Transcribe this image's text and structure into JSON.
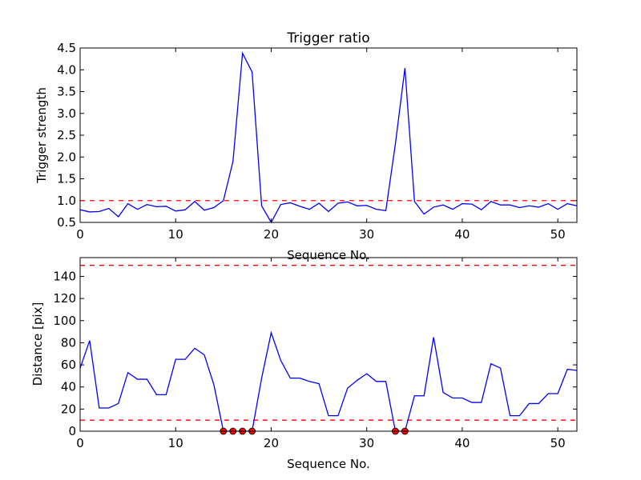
{
  "chart_data": [
    {
      "type": "line",
      "title": "Trigger ratio",
      "xlabel": "Sequence No.",
      "ylabel": "Trigger strength",
      "xlim": [
        0,
        52
      ],
      "ylim": [
        0.5,
        4.5
      ],
      "xticks": [
        "0",
        "10",
        "20",
        "30",
        "40",
        "50"
      ],
      "yticks": [
        "0.5",
        "1.0",
        "1.5",
        "2.0",
        "2.5",
        "3.0",
        "3.5",
        "4.0",
        "4.5"
      ],
      "threshold": 1.0,
      "values": [
        0.79,
        0.74,
        0.75,
        0.82,
        0.63,
        0.93,
        0.8,
        0.91,
        0.86,
        0.87,
        0.76,
        0.79,
        0.98,
        0.78,
        0.84,
        1.0,
        1.9,
        4.38,
        3.95,
        0.88,
        0.5,
        0.91,
        0.95,
        0.87,
        0.8,
        0.94,
        0.75,
        0.94,
        0.97,
        0.88,
        0.89,
        0.8,
        0.77,
        2.3,
        4.04,
        0.98,
        0.69,
        0.85,
        0.9,
        0.8,
        0.93,
        0.92,
        0.79,
        0.98,
        0.9,
        0.9,
        0.84,
        0.88,
        0.85,
        0.93,
        0.8,
        0.93,
        0.88
      ],
      "line_color": "#0000ff",
      "threshold_color": "#ff0000"
    },
    {
      "type": "line",
      "title": "",
      "xlabel": "Sequence No.",
      "ylabel": "Distance [pix]",
      "xlim": [
        0,
        52
      ],
      "ylim": [
        0,
        157
      ],
      "xticks": [
        "0",
        "10",
        "20",
        "30",
        "40",
        "50"
      ],
      "yticks": [
        "0",
        "20",
        "40",
        "60",
        "80",
        "100",
        "120",
        "140"
      ],
      "thresholds": [
        10,
        150
      ],
      "values": [
        57,
        82,
        21,
        21,
        25,
        53,
        47,
        47,
        33,
        33,
        65,
        65,
        75,
        69,
        42,
        0,
        0,
        0,
        0,
        48,
        89,
        64,
        48,
        48,
        45,
        43,
        14,
        14,
        39,
        46,
        52,
        45,
        45,
        0,
        0,
        32,
        32,
        85,
        35,
        30,
        30,
        26,
        26,
        61,
        57,
        14,
        14,
        25,
        25,
        34,
        34,
        56,
        55
      ],
      "markers_x": [
        15,
        16,
        17,
        18,
        33,
        34
      ],
      "line_color": "#0000ff",
      "threshold_color": "#ff0000",
      "marker_color": "#ff0000"
    }
  ]
}
